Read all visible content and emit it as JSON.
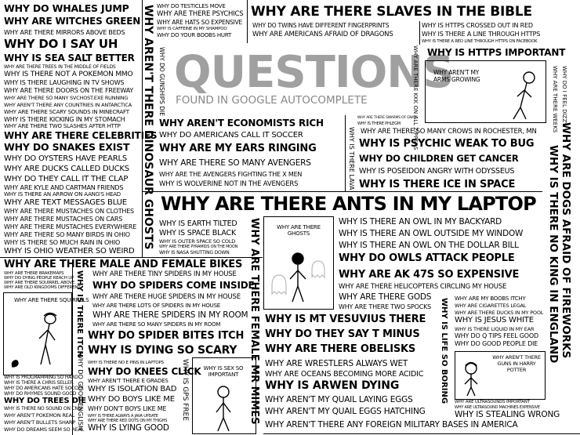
{
  "title": {
    "main": "QUESTIONS",
    "sub": "FOUND IN GOOGLE AUTOCOMPLETE"
  },
  "col_left": [
    "WHY DO WHALES JUMP",
    "WHY ARE WITCHES GREEN",
    "WHY ARE THERE MIRRORS ABOVE BEDS",
    "WHY DO I SAY UH",
    "WHY IS SEA SALT BETTER",
    "WHY ARE THERE TREES IN THE MIDDLE OF FIELDS",
    "WHY IS THERE NOT A POKEMON MMO",
    "WHY IS THERE LAUGHING IN TV SHOWS",
    "WHY ARE THERE DOORS ON THE FREEWAY",
    "WHY ARE THERE SO MANY SVCHOST.EXE RUNNING",
    "WHY AREN'T THERE ANY COUNTRIES IN ANTARCTICA",
    "WHY ARE THERE SCARY SOUNDS IN MINECRAFT",
    "WHY IS THERE KICKING IN MY STOMACH",
    "WHY ARE THERE TWO SLASHES AFTER HTTP",
    "WHY ARE THERE CELEBRITIES",
    "WHY DO SNAKES EXIST",
    "WHY DO OYSTERS HAVE PEARLS",
    "WHY ARE DUCKS CALLED DUCKS",
    "WHY DO THEY CALL IT THE CLAP",
    "WHY ARE KYLE AND CARTMAN FRIENDS",
    "WHY IS THERE AN ARROW ON AANG'S HEAD",
    "WHY ARE TEXT MESSAGES BLUE",
    "WHY ARE THERE MUSTACHES ON CLOTHES",
    "WHY ARE THERE MUSTACHES ON CARS",
    "WHY ARE THERE MUSTACHES EVERYWHERE",
    "WHY ARE THERE SO MANY BIRDS IN OHIO",
    "WHY IS THERE SO MUCH RAIN IN OHIO",
    "WHY IS OHIO WEATHER SO WEIRD"
  ],
  "row_male_female": "WHY ARE THERE MALE AND FEMALE BIKES",
  "left_small": [
    "WHY ARE THERE BRAKEMAPS",
    "WHY DO DYING PEOPLE REACH UP",
    "WHY ARE THERE SQUIRREL ABOVE",
    "WHY ARE OLD KINGDOMS DIFFERENT"
  ],
  "left_bottom": [
    "WHY IS PROGRAMMING SO HARD",
    "WHY IS THERE A CHRIS SELLER",
    "WHY DO AMERICANS HATE SOCCER",
    "WHY DO RHYMES SOUND GOOD",
    "WHY DO TREES DIE",
    "WHY IS THERE NO SOUND ON CNN",
    "WHY AREN'T POKEMON REAL",
    "WHY AREN'T BULLETS SHARP",
    "WHY DO DREAMS SEEM SO REAL"
  ],
  "vertical_cols": {
    "arent_trees": "WHY AREN'T THERE",
    "dinosaur_ghosts": "WHY AREN'T THERE DINOSAUR GHOSTS",
    "gunships": "WHY DO GUNSHIPS DIE",
    "there_itch": "WHY IS THERE ITCH",
    "good_english": "WHY DO GOOD ENGLISH",
    "female_mr_mimes": "WHY ARE THERE FEMALE MR MIMES",
    "gps": "WHY IS GPS FREE",
    "zippers": "WHY ARE THERE KKK ON ALL ZIPPERS",
    "phlegm": "WHY IS THERE LAVA",
    "no_king": "WHY IS THERE NO KING IN ENGLAND",
    "dogs_fireworks": "WHY ARE DOGS AFRAID OF FIREWORKS",
    "life_boring": "WHY IS LIFE SO BORING",
    "there_weeks": "WHY ARE THERE WEEKS",
    "feel_dizzy": "WHY DO I FEEL DIZZY"
  },
  "top_mid": [
    "WHY DO TESTICLES MOVE",
    "WHY ARE THERE PSYCHICS",
    "WHY ARE HATS SO EXPENSIVE",
    "WHY IS CAFFEINE IN MY SHAMPOO",
    "WHY DO YOUR BOOBS HURT"
  ],
  "slaves": "WHY ARE THERE SLAVES IN THE BIBLE",
  "top_right_small": [
    "WHY DO TWINS HAVE DIFFERENT FINGERPRINTS",
    "WHY ARE AMERICANS AFRAID OF DRAGONS"
  ],
  "https": [
    "WHY IS HTTPS CROSSED OUT IN RED",
    "WHY IS THERE A LINE THROUGH HTTPS",
    "WHY IS THERE A RED LINE THROUGH HTTPS ON FACEBOOK",
    "WHY IS HTTPS IMPORTANT"
  ],
  "arms_caption": "WHY AREN'T MY ARMS GROWING",
  "mid_block": [
    "WHY AREN'T ECONOMISTS RICH",
    "WHY DO AMERICANS CALL IT SOCCER",
    "WHY ARE MY EARS RINGING",
    "WHY ARE THERE SO MANY AVENGERS",
    "WHY ARE THE AVENGERS FIGHTING THE X MEN",
    "WHY IS WOLVERINE NOT IN THE AVENGERS"
  ],
  "tiny_mid": [
    "WHY ARE THERE SWARMS OF GNATS",
    "WHY IS THERE PHLEGM"
  ],
  "right_block": [
    "WHY ARE THERE SO MANY CROWS IN ROCHESTER, MN",
    "WHY IS PSYCHIC WEAK TO BUG",
    "WHY DO CHILDREN GET CANCER",
    "WHY IS POSEIDON ANGRY WITH ODYSSEUS",
    "WHY IS THERE ICE IN SPACE"
  ],
  "ants": "WHY ARE THERE ANTS IN MY LAPTOP",
  "space_block": [
    "WHY IS EARTH TILTED",
    "WHY IS SPACE BLACK",
    "WHY IS OUTER SPACE SO COLD",
    "WHY ARE THERE PYRAMIDS ON THE MOON",
    "WHY IS NASA SHUTTING DOWN"
  ],
  "ghosts_caption": "WHY ARE THERE GHOSTS",
  "owl_block": [
    "WHY IS THERE AN OWL IN MY BACKYARD",
    "WHY IS THERE AN OWL OUTSIDE MY WINDOW",
    "WHY IS THERE AN OWL ON THE DOLLAR BILL",
    "WHY DO OWLS ATTACK PEOPLE",
    "WHY ARE AK 47S SO EXPENSIVE",
    "WHY ARE THERE HELICOPTERS CIRCLING MY HOUSE",
    "WHY ARE THERE GODS",
    "WHY ARE THERE TWO SPOCKS"
  ],
  "spider_block": [
    "WHY ARE THERE TINY SPIDERS IN MY HOUSE",
    "WHY DO SPIDERS COME INSIDE",
    "WHY ARE THERE HUGE SPIDERS IN MY HOUSE",
    "WHY ARE THERE LOTS OF SPIDERS IN MY HOUSE",
    "WHY ARE THERE SPIDERS IN MY ROOM",
    "WHY ARE THERE SO MANY SPIDERS IN MY ROOM",
    "WHY DO SPIDER BITES ITCH",
    "WHY IS DYING SO SCARY"
  ],
  "squirrels_caption": "WHY ARE THERE SQUIRRELS",
  "bottom_mid": [
    "WHY IS THERE NO E PINS IN LAPTOPS",
    "WHY DO KNEES CLICK",
    "WHY AREN'T THERE E GRADES",
    "WHY IS ISOLATION BAD",
    "WHY DO BOYS LIKE ME",
    "WHY DON'T BOYS LIKE ME",
    "WHY IS THERE ALWAYS A JAVA UPDATE",
    "WHY ARE THERE RED DOTS ON MY THIGHS",
    "WHY IS LYING GOOD"
  ],
  "sex_caption": "WHY IS SEX SO IMPORTANT",
  "bottom_center": [
    "WHY IS MT VESUVIUS THERE",
    "WHY DO THEY SAY T MINUS",
    "WHY ARE THERE OBELISKS",
    "WHY ARE WRESTLERS ALWAYS WET",
    "WHY ARE OCEANS BECOMING MORE ACIDIC",
    "WHY IS ARWEN DYING",
    "WHY AREN'T MY QUAIL LAYING EGGS",
    "WHY AREN'T MY QUAIL EGGS HATCHING",
    "WHY AREN'T THERE ANY FOREIGN MILITARY BASES IN AMERICA"
  ],
  "boob_block": [
    "WHY ARE MY BOOBS ITCHY",
    "WHY ARE CIGARETTES LEGAL",
    "WHY ARE THERE DUCKS IN MY POOL",
    "WHY IS JESUS WHITE",
    "WHY IS THERE LIQUID IN MY EAR",
    "WHY DO Q TIPS FEEL GOOD",
    "WHY DO GOOD PEOPLE DIE"
  ],
  "guns_caption": "WHY AREN'T THERE GUNS IN HARRY POTTER",
  "br_small": [
    "WHY ARE ULTRASOUNDS IMPORTANT",
    "WHY ARE ULTRASOUND MACHINES EXPENSIVE",
    "WHY IS STEALING WRONG"
  ]
}
